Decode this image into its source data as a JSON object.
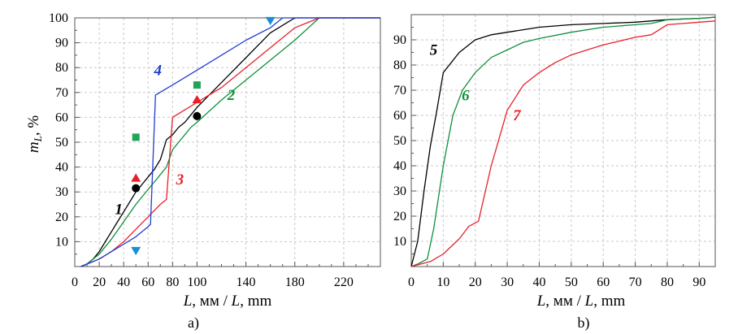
{
  "chart_data": [
    {
      "type": "line",
      "panel_label": "a)",
      "xlabel_var": "L",
      "xlabel_rest": ", мм / ",
      "xlabel_var2": "L",
      "xlabel_unit": ", mm",
      "ylabel_var": "m",
      "ylabel_sub": "L",
      "ylabel_unit": ", %",
      "xlim": [
        0,
        250
      ],
      "ylim": [
        0,
        100
      ],
      "xticks": [
        0,
        20,
        40,
        60,
        80,
        100,
        140,
        180,
        220
      ],
      "yticks": [
        10,
        20,
        30,
        40,
        50,
        60,
        70,
        80,
        90,
        100
      ],
      "grid": true,
      "series": [
        {
          "name": "1",
          "color": "#000000",
          "label_at": [
            36,
            21
          ],
          "x": [
            5,
            10,
            15,
            20,
            25,
            30,
            35,
            40,
            45,
            50,
            55,
            60,
            65,
            70,
            75,
            80,
            85,
            90,
            95,
            100,
            110,
            120,
            130,
            140,
            150,
            160,
            170,
            180,
            190,
            200,
            210,
            220,
            250
          ],
          "y": [
            0,
            1,
            3,
            6,
            10,
            14,
            18,
            22,
            26,
            30,
            33,
            36,
            39,
            43,
            51,
            53,
            56,
            58,
            61,
            64,
            69,
            74,
            79,
            84,
            89,
            94,
            97,
            100,
            100,
            100,
            100,
            100,
            100
          ]
        },
        {
          "name": "2",
          "color": "#0f8f3a",
          "label_at": [
            128,
            67
          ],
          "x": [
            5,
            10,
            20,
            30,
            40,
            50,
            60,
            65,
            70,
            75,
            80,
            85,
            90,
            95,
            100,
            120,
            140,
            160,
            180,
            200,
            220,
            250
          ],
          "y": [
            0,
            1,
            5,
            11,
            18,
            25,
            31,
            34,
            37,
            40,
            47,
            50,
            53,
            56,
            58,
            67,
            75,
            83,
            91,
            100,
            100,
            100
          ]
        },
        {
          "name": "3",
          "color": "#e8202a",
          "label_at": [
            86,
            33
          ],
          "x": [
            5,
            10,
            20,
            30,
            40,
            50,
            60,
            70,
            75,
            80,
            90,
            100,
            120,
            140,
            160,
            180,
            200,
            220,
            250
          ],
          "y": [
            0,
            1,
            3,
            6,
            10,
            15,
            20,
            25,
            27,
            60,
            63,
            66,
            72,
            80,
            88,
            96,
            100,
            100,
            100
          ]
        },
        {
          "name": "4",
          "color": "#1e3cd0",
          "label_at": [
            68,
            77
          ],
          "x": [
            5,
            10,
            20,
            30,
            40,
            50,
            60,
            62,
            66,
            80,
            100,
            120,
            140,
            160,
            170,
            180,
            200,
            220,
            250
          ],
          "y": [
            0,
            1,
            3,
            6,
            9,
            12,
            16,
            17,
            69,
            73,
            79,
            85,
            91,
            96,
            100,
            100,
            100,
            100,
            100
          ]
        }
      ],
      "markers": [
        {
          "shape": "circle",
          "color": "#000000",
          "x": 50,
          "y": 31.5
        },
        {
          "shape": "circle",
          "color": "#000000",
          "x": 100,
          "y": 60.5
        },
        {
          "shape": "triangle-up",
          "color": "#e8202a",
          "x": 50,
          "y": 35.5
        },
        {
          "shape": "triangle-up",
          "color": "#e8202a",
          "x": 100,
          "y": 67
        },
        {
          "shape": "square",
          "color": "#22a35a",
          "x": 50,
          "y": 52
        },
        {
          "shape": "square",
          "color": "#22a35a",
          "x": 100,
          "y": 73
        },
        {
          "shape": "triangle-down",
          "color": "#1a8fd6",
          "x": 50,
          "y": 6.5
        },
        {
          "shape": "triangle-down",
          "color": "#1a8fd6",
          "x": 160,
          "y": 99
        }
      ]
    },
    {
      "type": "line",
      "panel_label": "b)",
      "xlabel_var": "L",
      "xlabel_rest": ", мм / ",
      "xlabel_var2": "L",
      "xlabel_unit": ", mm",
      "xlim": [
        0,
        95
      ],
      "ylim": [
        0,
        100
      ],
      "xticks": [
        0,
        10,
        20,
        30,
        40,
        50,
        60,
        70,
        80,
        90
      ],
      "yticks": [
        10,
        20,
        30,
        40,
        50,
        60,
        70,
        80,
        90
      ],
      "grid": true,
      "series": [
        {
          "name": "5",
          "color": "#000000",
          "label_at": [
            7,
            84
          ],
          "x": [
            0,
            2,
            4,
            6,
            8,
            10,
            15,
            20,
            25,
            30,
            40,
            50,
            60,
            70,
            80,
            90,
            95
          ],
          "y": [
            0,
            10,
            30,
            48,
            62,
            77,
            85,
            90,
            92,
            93,
            95,
            96,
            96.5,
            97,
            98,
            98.5,
            99
          ]
        },
        {
          "name": "6",
          "color": "#0f8f3a",
          "label_at": [
            17,
            66
          ],
          "x": [
            0,
            2,
            5,
            7,
            10,
            13,
            16,
            20,
            25,
            30,
            35,
            40,
            50,
            60,
            70,
            75,
            80,
            90,
            95
          ],
          "y": [
            0,
            1,
            3,
            15,
            40,
            60,
            70,
            77,
            83,
            86,
            89,
            90.5,
            93,
            95,
            96,
            96.5,
            98,
            98.5,
            99
          ]
        },
        {
          "name": "7",
          "color": "#e8202a",
          "label_at": [
            33,
            58
          ],
          "x": [
            0,
            3,
            6,
            10,
            15,
            18,
            21,
            25,
            30,
            35,
            40,
            45,
            50,
            55,
            60,
            65,
            70,
            75,
            80,
            85,
            90,
            95
          ],
          "y": [
            0,
            1,
            2,
            5,
            11,
            16,
            18,
            40,
            62,
            72,
            77,
            81,
            84,
            86,
            88,
            89.5,
            91,
            92,
            96,
            96.5,
            97,
            97.5
          ]
        }
      ]
    }
  ]
}
